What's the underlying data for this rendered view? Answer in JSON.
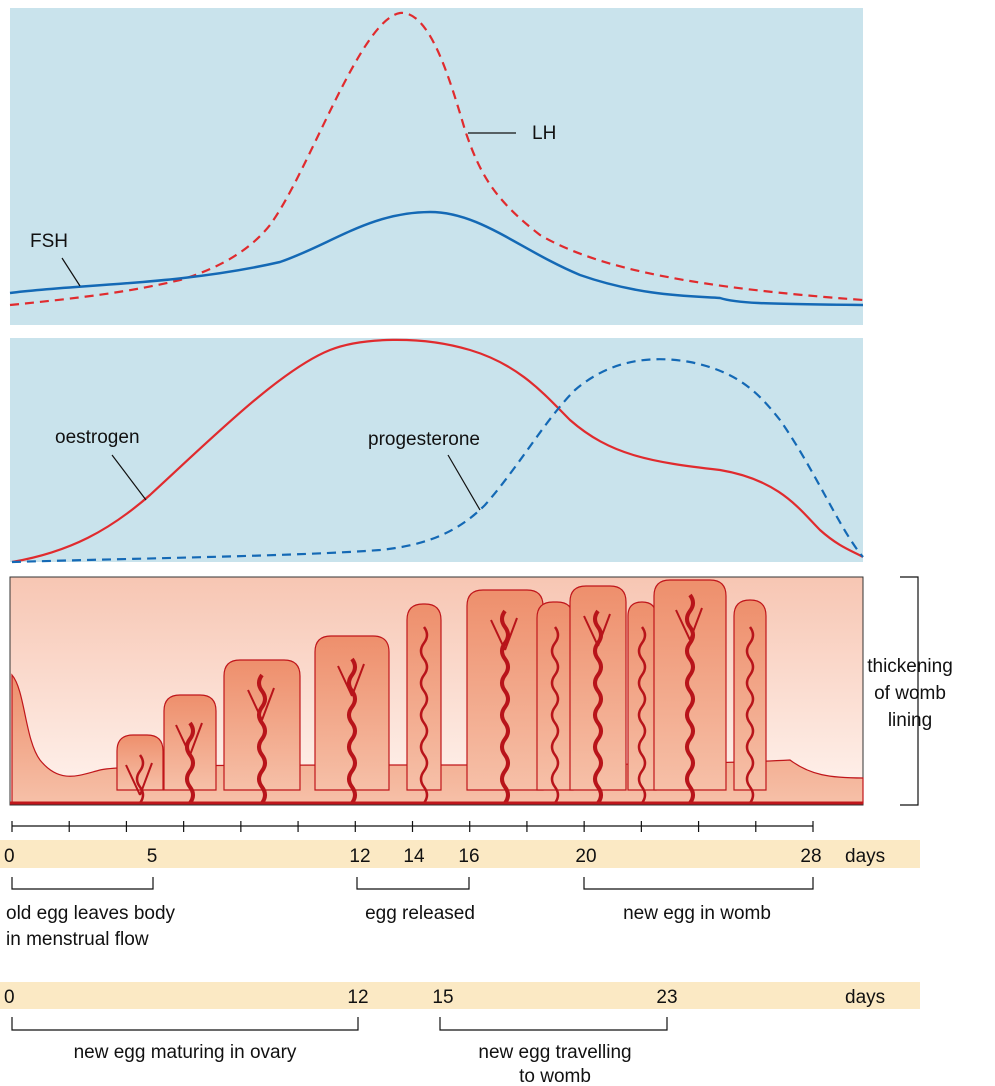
{
  "hormones_top": {
    "lh_label": "LH",
    "fsh_label": "FSH"
  },
  "hormones_middle": {
    "oestrogen_label": "oestrogen",
    "progesterone_label": "progesterone"
  },
  "womb_lining": {
    "label_lines": [
      "thickening",
      "of womb",
      "lining"
    ]
  },
  "timeline_cycle": {
    "ticks": [
      "0",
      "5",
      "12",
      "14",
      "16",
      "20",
      "28"
    ],
    "unit": "days",
    "periods": [
      {
        "lines": [
          "old egg leaves body",
          "in menstrual flow"
        ]
      },
      {
        "lines": [
          "egg released"
        ]
      },
      {
        "lines": [
          "new egg in womb"
        ]
      }
    ]
  },
  "timeline_egg": {
    "ticks": [
      "0",
      "12",
      "15",
      "23"
    ],
    "unit": "days",
    "periods": [
      {
        "lines": [
          "new egg maturing in ovary"
        ]
      },
      {
        "lines": [
          "new egg travelling",
          "to womb"
        ]
      }
    ]
  }
}
